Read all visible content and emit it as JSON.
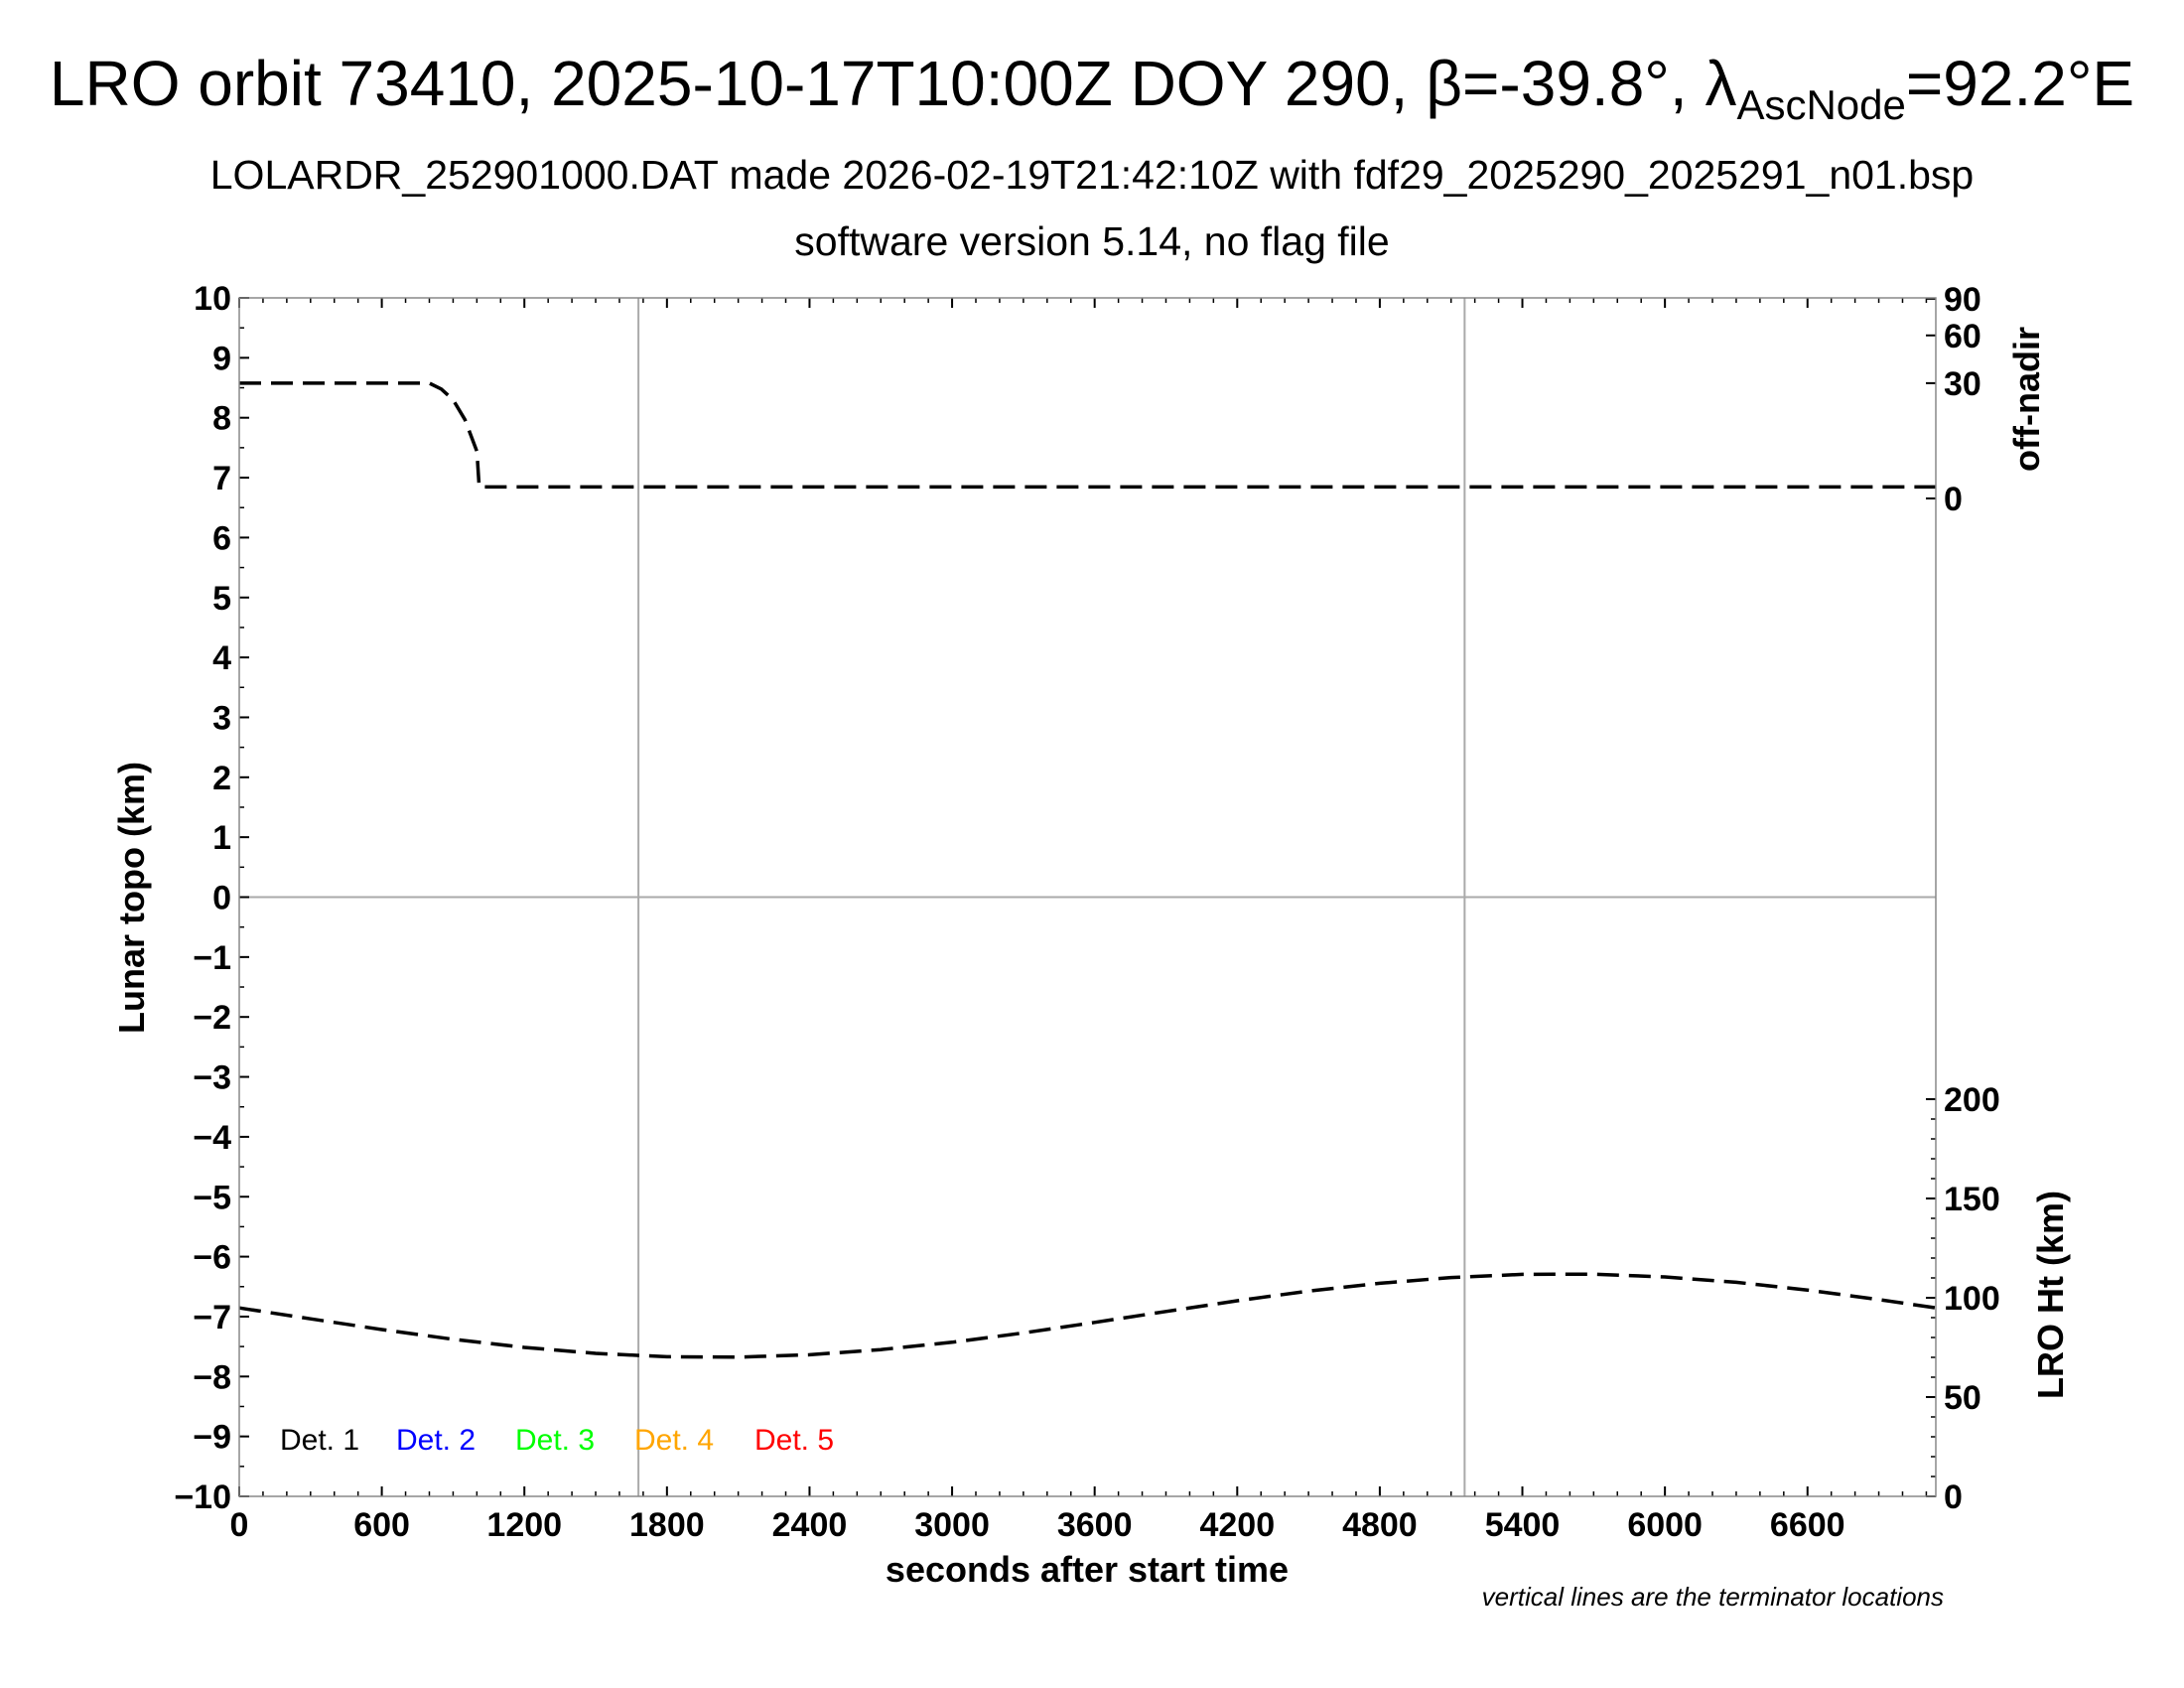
{
  "title": {
    "main": "LRO orbit 73410, 2025-10-17T10:00Z DOY 290, β=-39.8°, λ",
    "sub": "AscNode",
    "tail": "=92.2°E"
  },
  "subtitle": "LOLARDR_252901000.DAT made 2026-02-19T21:42:10Z with fdf29_2025290_2025291_n01.bsp",
  "subtitle2": "software version 5.14, no flag file",
  "footnote": "vertical lines are the terminator locations",
  "chart_data": {
    "type": "line",
    "xlabel": "seconds after start time",
    "xlim": [
      0,
      7140
    ],
    "xticks": [
      0,
      600,
      1200,
      1800,
      2400,
      3000,
      3600,
      4200,
      4800,
      5400,
      6000,
      6600
    ],
    "ylabel": "Lunar topo (km)",
    "ylim": [
      -10,
      10
    ],
    "yticks": [
      -10,
      -9,
      -8,
      -7,
      -6,
      -5,
      -4,
      -3,
      -2,
      -1,
      0,
      1,
      2,
      3,
      4,
      5,
      6,
      7,
      8,
      9,
      10
    ],
    "ytick_labels": [
      "−10",
      "−9",
      "−8",
      "−7",
      "−6",
      "−5",
      "−4",
      "−3",
      "−2",
      "−1",
      "0",
      "1",
      "2",
      "3",
      "4",
      "5",
      "6",
      "7",
      "8",
      "9",
      "10"
    ],
    "right_axis_top": {
      "label": "off-nadir",
      "scale": "sqrt",
      "ticks": [
        0,
        30,
        60,
        90
      ]
    },
    "right_axis_bottom": {
      "label": "LRO Ht (km)",
      "ylim": [
        0,
        200
      ],
      "ticks": [
        0,
        50,
        100,
        150,
        200
      ]
    },
    "terminators": [
      1680,
      5157
    ],
    "grid": "zero line and terminator lines only",
    "legend": {
      "placement": "bottom-left",
      "entries": [
        {
          "label": "Det. 1",
          "color": "#000000"
        },
        {
          "label": "Det. 2",
          "color": "#0000ff"
        },
        {
          "label": "Det. 3",
          "color": "#00ff00"
        },
        {
          "label": "Det. 4",
          "color": "#ffa500"
        },
        {
          "label": "Det. 5",
          "color": "#ff0000"
        }
      ]
    },
    "series": [
      {
        "axis": "off-nadir",
        "style": "dashed",
        "color": "#000000",
        "x": [
          0,
          800,
          850,
          900,
          950,
          1000,
          1010,
          7140
        ],
        "y": [
          30,
          30,
          27,
          22,
          14,
          5,
          0.3,
          0.3
        ]
      },
      {
        "axis": "LRO Ht (km)",
        "style": "dashed",
        "color": "#000000",
        "x": [
          0,
          300,
          600,
          900,
          1200,
          1500,
          1800,
          2100,
          2400,
          2700,
          3000,
          3300,
          3600,
          3900,
          4200,
          4500,
          4800,
          5100,
          5400,
          5700,
          6000,
          6300,
          6600,
          6900,
          7140
        ],
        "y": [
          94.9,
          89.4,
          84.0,
          79.1,
          75.0,
          72.0,
          70.3,
          70.1,
          71.3,
          73.9,
          77.6,
          82.3,
          87.6,
          93.1,
          98.5,
          103.4,
          107.3,
          110.2,
          111.8,
          111.9,
          110.5,
          107.8,
          103.9,
          99.1,
          94.9
        ]
      }
    ]
  }
}
